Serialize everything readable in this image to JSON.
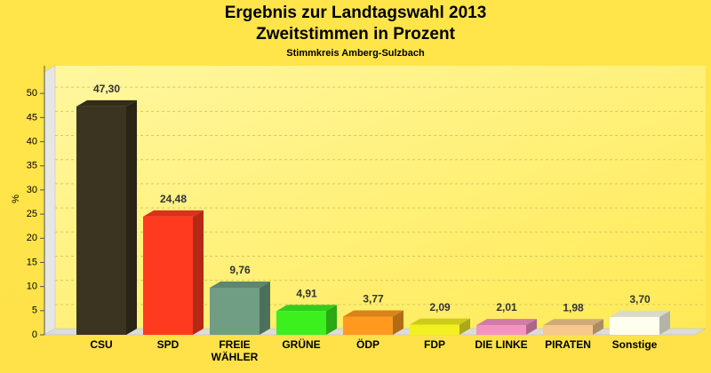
{
  "chart_data": {
    "type": "bar3d",
    "title": "Ergebnis zur Landtagswahl 2013",
    "subtitle": "Zweitstimmen in Prozent",
    "subtitle2": "Stimmkreis Amberg-Sulzbach",
    "y_label": "%",
    "categories": [
      "CSU",
      "SPD",
      "FREIE\nWÄHLER",
      "GRÜNE",
      "ÖDP",
      "FDP",
      "DIE LINKE",
      "PIRATEN",
      "Sonstige"
    ],
    "values": [
      47.3,
      24.48,
      9.76,
      4.91,
      3.77,
      2.09,
      2.01,
      1.98,
      3.7
    ],
    "value_labels": [
      "47,30",
      "24,48",
      "9,76",
      "4,91",
      "3,77",
      "2,09",
      "2,01",
      "1,98",
      "3,70"
    ],
    "colors": [
      "#3b3420",
      "#ff3a1e",
      "#6f9e84",
      "#3cf020",
      "#ff9a1e",
      "#f2f020",
      "#f592c4",
      "#f6c88e",
      "#fffff0"
    ],
    "ylim": [
      0,
      55
    ],
    "yticks": [
      0,
      5,
      10,
      15,
      20,
      25,
      30,
      35,
      40,
      45,
      50
    ],
    "grid": true
  }
}
